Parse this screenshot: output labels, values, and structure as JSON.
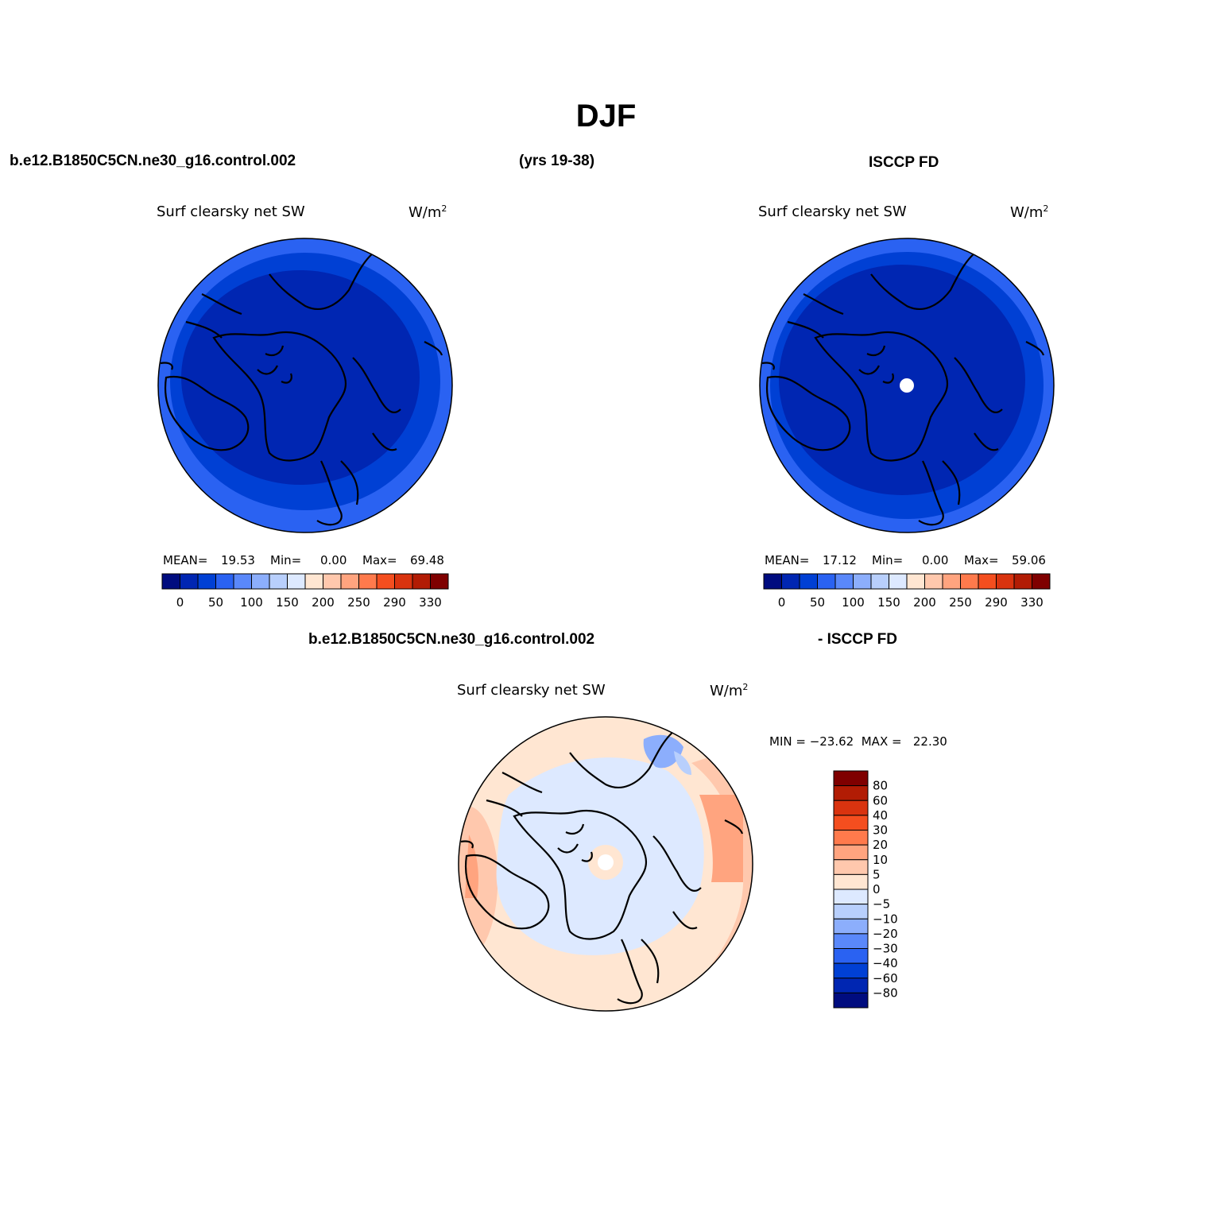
{
  "title": "DJF",
  "header": {
    "case": "b.e12.B1850C5CN.ne30_g16.control.002",
    "years": "(yrs 19-38)",
    "obs": "ISCCP FD",
    "diff_case": "b.e12.B1850C5CN.ne30_g16.control.002",
    "diff_obs": "- ISCCP FD"
  },
  "panels": {
    "model": {
      "variable": "Surf clearsky net SW",
      "units": "W/m",
      "units_sup": "2",
      "mean_label": "MEAN=",
      "mean": "19.53",
      "min_label": "Min=",
      "min": "0.00",
      "max_label": "Max=",
      "max": "69.48"
    },
    "obs": {
      "variable": "Surf clearsky net SW",
      "units": "W/m",
      "units_sup": "2",
      "mean_label": "MEAN=",
      "mean": "17.12",
      "min_label": "Min=",
      "min": "0.00",
      "max_label": "Max=",
      "max": "59.06"
    },
    "diff": {
      "variable": "Surf clearsky net SW",
      "units": "W/m",
      "units_sup": "2",
      "minmax_text": "MIN = −23.62  MAX =   22.30"
    }
  },
  "chart_data": [
    {
      "type": "heatmap",
      "title": "Surf clearsky net SW",
      "units": "W/m2",
      "projection": "north polar stereographic",
      "mean": 19.53,
      "min": 0.0,
      "max": 69.48,
      "colorbar_levels": [
        0,
        25,
        50,
        75,
        100,
        125,
        150,
        175,
        200,
        225,
        250,
        270,
        290,
        310,
        330
      ],
      "colorbar_tick_labels": [
        "0",
        "50",
        "100",
        "150",
        "200",
        "250",
        "290",
        "330"
      ],
      "colorbar_orientation": "horizontal"
    },
    {
      "type": "heatmap",
      "title": "Surf clearsky net SW",
      "units": "W/m2",
      "projection": "north polar stereographic",
      "mean": 17.12,
      "min": 0.0,
      "max": 59.06,
      "colorbar_levels": [
        0,
        25,
        50,
        75,
        100,
        125,
        150,
        175,
        200,
        225,
        250,
        270,
        290,
        310,
        330
      ],
      "colorbar_tick_labels": [
        "0",
        "50",
        "100",
        "150",
        "200",
        "250",
        "290",
        "330"
      ],
      "colorbar_orientation": "horizontal",
      "missing_pole": true
    },
    {
      "type": "heatmap",
      "title": "Surf clearsky net SW",
      "units": "W/m2",
      "projection": "north polar stereographic",
      "min": -23.62,
      "max": 22.3,
      "colorbar_levels": [
        80,
        60,
        40,
        30,
        20,
        10,
        5,
        0,
        -5,
        -10,
        -20,
        -30,
        -40,
        -60,
        -80
      ],
      "colorbar_tick_labels": [
        "80",
        "60",
        "40",
        "30",
        "20",
        "10",
        "5",
        "0",
        "−5",
        "−10",
        "−20",
        "−30",
        "−40",
        "−60",
        "−80"
      ],
      "colorbar_orientation": "vertical"
    }
  ],
  "colors": {
    "horizontal_bar": [
      "#000c7f",
      "#0026b2",
      "#0040d4",
      "#2a62f2",
      "#5a88fa",
      "#8caefc",
      "#b8cffc",
      "#dde9ff",
      "#ffe6d2",
      "#ffc8ad",
      "#ffa47f",
      "#ff7a4c",
      "#f44e1f",
      "#d9330f",
      "#b21c04",
      "#7f0000"
    ],
    "vertical_bar": [
      "#7f0000",
      "#b21c04",
      "#d9330f",
      "#f44e1f",
      "#ff7a4c",
      "#ffa47f",
      "#ffc8ad",
      "#ffe6d2",
      "#dde9ff",
      "#b8cffc",
      "#8caefc",
      "#5a88fa",
      "#2a62f2",
      "#0040d4",
      "#0026b2",
      "#000c7f"
    ]
  }
}
